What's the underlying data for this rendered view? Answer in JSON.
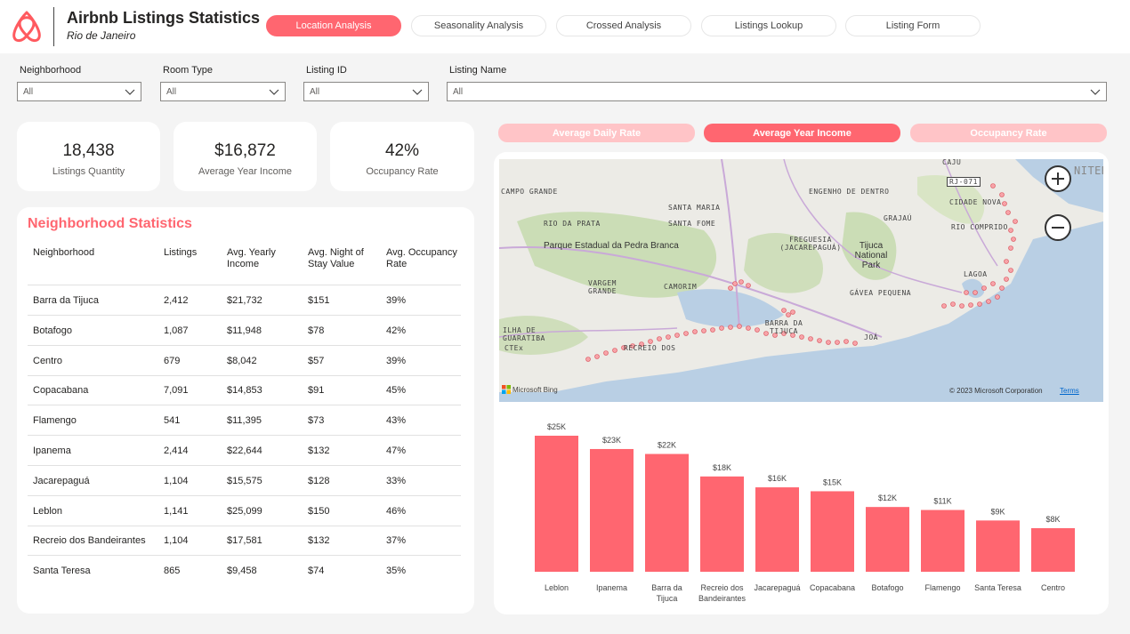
{
  "header": {
    "title": "Airbnb Listings Statistics",
    "subtitle": "Rio de Janeiro",
    "brand_color": "#ff5a5f",
    "nav": [
      "Location Analysis",
      "Seasonality Analysis",
      "Crossed Analysis",
      "Listings Lookup",
      "Listing Form"
    ],
    "active_nav": "Location Analysis"
  },
  "filters": {
    "neighborhood": {
      "label": "Neighborhood",
      "value": "All"
    },
    "room_type": {
      "label": "Room Type",
      "value": "All"
    },
    "listing_id": {
      "label": "Listing ID",
      "value": "All"
    },
    "listing_name": {
      "label": "Listing Name",
      "value": "All"
    }
  },
  "kpis": {
    "listings": {
      "value": "18,438",
      "label": "Listings Quantity"
    },
    "income": {
      "value": "$16,872",
      "label": "Average Year Income"
    },
    "occupancy": {
      "value": "42%",
      "label": "Occupancy Rate"
    }
  },
  "table": {
    "title": "Neighborhood Statistics",
    "columns": [
      "Neighborhood",
      "Listings",
      "Avg. Yearly Income",
      "Avg. Night of Stay Value",
      "Avg. Occupancy Rate"
    ],
    "rows": [
      [
        "Barra da Tijuca",
        "2,412",
        "$21,732",
        "$151",
        "39%"
      ],
      [
        "Botafogo",
        "1,087",
        "$11,948",
        "$78",
        "42%"
      ],
      [
        "Centro",
        "679",
        "$8,042",
        "$57",
        "39%"
      ],
      [
        "Copacabana",
        "7,091",
        "$14,853",
        "$91",
        "45%"
      ],
      [
        "Flamengo",
        "541",
        "$11,395",
        "$73",
        "43%"
      ],
      [
        "Ipanema",
        "2,414",
        "$22,644",
        "$132",
        "47%"
      ],
      [
        "Jacarepaguá",
        "1,104",
        "$15,575",
        "$128",
        "33%"
      ],
      [
        "Leblon",
        "1,141",
        "$25,099",
        "$150",
        "46%"
      ],
      [
        "Recreio dos Bandeirantes",
        "1,104",
        "$17,581",
        "$132",
        "37%"
      ],
      [
        "Santa Teresa",
        "865",
        "$9,458",
        "$74",
        "35%"
      ]
    ]
  },
  "metric_buttons": [
    "Average Daily Rate",
    "Average Year Income",
    "Occupancy Rate"
  ],
  "active_metric": "Average Year Income",
  "map": {
    "copyright": "© 2023 Microsoft Corporation",
    "terms": "Terms",
    "provider": "Microsoft Bing",
    "labels": [
      "CAJU",
      "RJ-071",
      "NITER",
      "CAMPO GRANDE",
      "SANTA MARIA",
      "ENGENHO DE DENTRO",
      "CIDADE NOVA",
      "RIO DA PRATA",
      "SANTA FOME",
      "GRAJAÚ",
      "RIO COMPRIDO",
      "Parque Estadual da Pedra Branca",
      "FREGUESIA (JACAREPAGUÁ)",
      "Tijuca National Park",
      "VARGEM GRANDE",
      "CAMORIM",
      "GÁVEA PEQUENA",
      "LAGOA",
      "ILHA DE GUARATIBA",
      "BARRA DA TIJUCA",
      "JOÁ",
      "CTEx",
      "RECREIO DOS"
    ]
  },
  "chart_data": {
    "type": "bar",
    "categories": [
      "Leblon",
      "Ipanema",
      "Barra da Tijuca",
      "Recreio dos Bandeirantes",
      "Jacarepaguá",
      "Copacabana",
      "Botafogo",
      "Flamengo",
      "Santa Teresa",
      "Centro"
    ],
    "values": [
      25099,
      22644,
      21732,
      17581,
      15575,
      14853,
      11948,
      11395,
      9458,
      8042
    ],
    "data_labels": [
      "$25K",
      "$23K",
      "$22K",
      "$18K",
      "$16K",
      "$15K",
      "$12K",
      "$11K",
      "$9K",
      "$8K"
    ],
    "bar_color": "#ff6670",
    "ylim": [
      0,
      25099
    ],
    "grid": false,
    "legend": "none"
  }
}
